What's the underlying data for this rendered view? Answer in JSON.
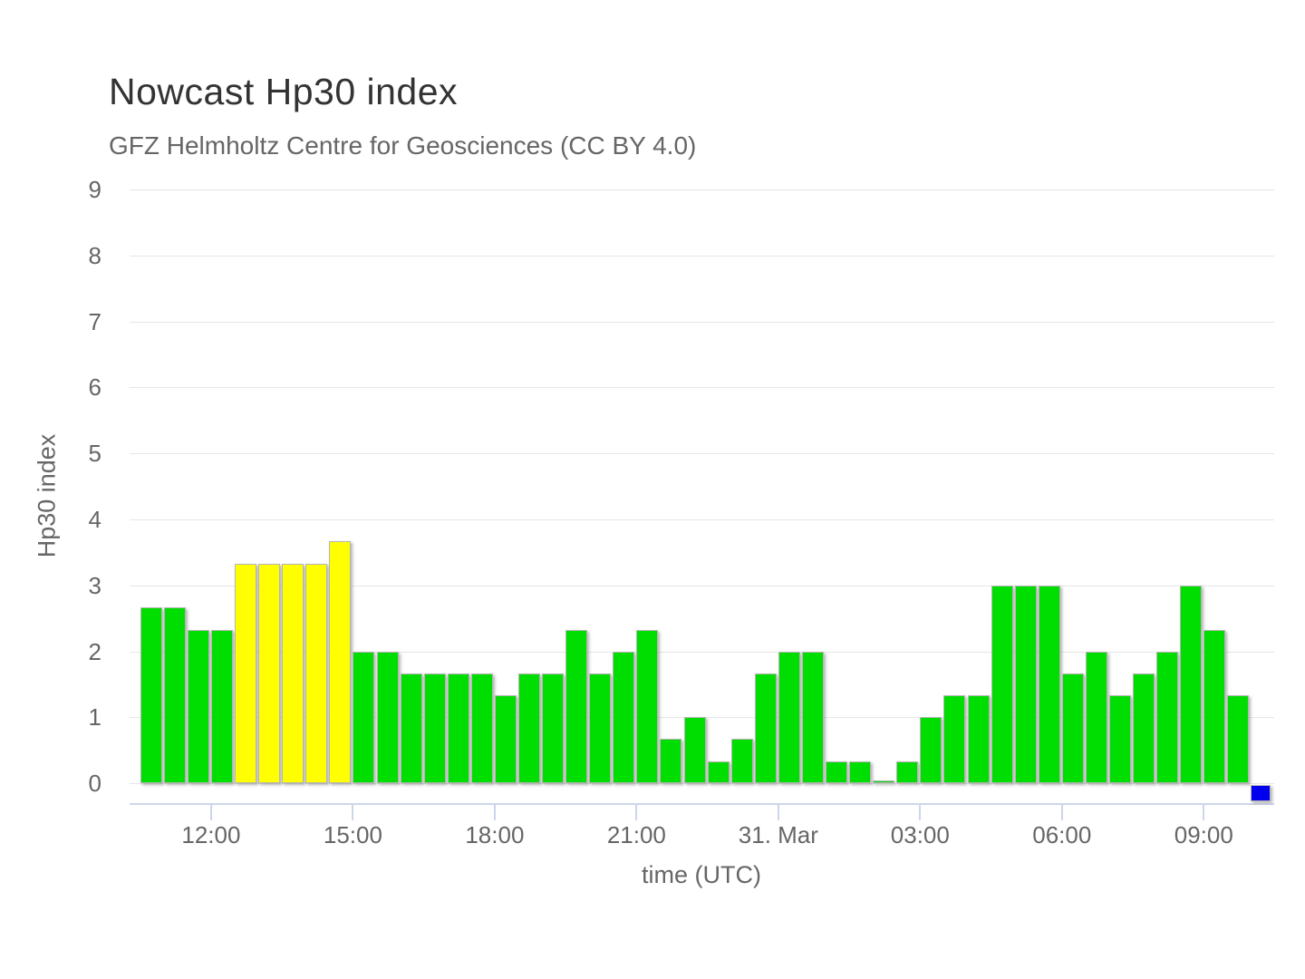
{
  "chart_data": {
    "type": "bar",
    "title": "Nowcast Hp30 index",
    "subtitle": "GFZ Helmholtz Centre for Geosciences (CC BY 4.0)",
    "xlabel": "time (UTC)",
    "ylabel": "Hp30 index",
    "ylim": [
      -0.3,
      9
    ],
    "grid": true,
    "legend": false,
    "y_ticks": [
      0,
      1,
      2,
      3,
      4,
      5,
      6,
      7,
      8,
      9
    ],
    "x_ticks": [
      {
        "label": "12:00",
        "bar_index": 3
      },
      {
        "label": "15:00",
        "bar_index": 9
      },
      {
        "label": "18:00",
        "bar_index": 15
      },
      {
        "label": "21:00",
        "bar_index": 21
      },
      {
        "label": "31. Mar",
        "bar_index": 27
      },
      {
        "label": "03:00",
        "bar_index": 33
      },
      {
        "label": "06:00",
        "bar_index": 39
      },
      {
        "label": "09:00",
        "bar_index": 45
      }
    ],
    "colors": {
      "green": "#00dd00",
      "yellow": "#ffff00",
      "blue": "#0000ee"
    },
    "series": [
      {
        "name": "Hp30",
        "interval_minutes": 30,
        "points": [
          {
            "time": "10:30",
            "value": 2.67,
            "color": "green"
          },
          {
            "time": "11:00",
            "value": 2.67,
            "color": "green"
          },
          {
            "time": "11:30",
            "value": 2.33,
            "color": "green"
          },
          {
            "time": "12:00",
            "value": 2.33,
            "color": "green"
          },
          {
            "time": "12:30",
            "value": 3.33,
            "color": "yellow"
          },
          {
            "time": "13:00",
            "value": 3.33,
            "color": "yellow"
          },
          {
            "time": "13:30",
            "value": 3.33,
            "color": "yellow"
          },
          {
            "time": "14:00",
            "value": 3.33,
            "color": "yellow"
          },
          {
            "time": "14:30",
            "value": 3.67,
            "color": "yellow"
          },
          {
            "time": "15:00",
            "value": 2.0,
            "color": "green"
          },
          {
            "time": "15:30",
            "value": 2.0,
            "color": "green"
          },
          {
            "time": "16:00",
            "value": 1.67,
            "color": "green"
          },
          {
            "time": "16:30",
            "value": 1.67,
            "color": "green"
          },
          {
            "time": "17:00",
            "value": 1.67,
            "color": "green"
          },
          {
            "time": "17:30",
            "value": 1.67,
            "color": "green"
          },
          {
            "time": "18:00",
            "value": 1.33,
            "color": "green"
          },
          {
            "time": "18:30",
            "value": 1.67,
            "color": "green"
          },
          {
            "time": "19:00",
            "value": 1.67,
            "color": "green"
          },
          {
            "time": "19:30",
            "value": 2.33,
            "color": "green"
          },
          {
            "time": "20:00",
            "value": 1.67,
            "color": "green"
          },
          {
            "time": "20:30",
            "value": 2.0,
            "color": "green"
          },
          {
            "time": "21:00",
            "value": 2.33,
            "color": "green"
          },
          {
            "time": "21:30",
            "value": 0.67,
            "color": "green"
          },
          {
            "time": "22:00",
            "value": 1.0,
            "color": "green"
          },
          {
            "time": "22:30",
            "value": 0.33,
            "color": "green"
          },
          {
            "time": "23:00",
            "value": 0.67,
            "color": "green"
          },
          {
            "time": "23:30",
            "value": 1.67,
            "color": "green"
          },
          {
            "time": "00:00",
            "value": 2.0,
            "color": "green"
          },
          {
            "time": "00:30",
            "value": 2.0,
            "color": "green"
          },
          {
            "time": "01:00",
            "value": 0.33,
            "color": "green"
          },
          {
            "time": "01:30",
            "value": 0.33,
            "color": "green"
          },
          {
            "time": "02:00",
            "value": 0.0,
            "color": "green"
          },
          {
            "time": "02:30",
            "value": 0.33,
            "color": "green"
          },
          {
            "time": "03:00",
            "value": 1.0,
            "color": "green"
          },
          {
            "time": "03:30",
            "value": 1.33,
            "color": "green"
          },
          {
            "time": "04:00",
            "value": 1.33,
            "color": "green"
          },
          {
            "time": "04:30",
            "value": 3.0,
            "color": "green"
          },
          {
            "time": "05:00",
            "value": 3.0,
            "color": "green"
          },
          {
            "time": "05:30",
            "value": 3.0,
            "color": "green"
          },
          {
            "time": "06:00",
            "value": 1.67,
            "color": "green"
          },
          {
            "time": "06:30",
            "value": 2.0,
            "color": "green"
          },
          {
            "time": "07:00",
            "value": 1.33,
            "color": "green"
          },
          {
            "time": "07:30",
            "value": 1.67,
            "color": "green"
          },
          {
            "time": "08:00",
            "value": 2.0,
            "color": "green"
          },
          {
            "time": "08:30",
            "value": 3.0,
            "color": "green"
          },
          {
            "time": "09:00",
            "value": 2.33,
            "color": "green"
          },
          {
            "time": "09:30",
            "value": 1.33,
            "color": "green"
          },
          {
            "time": "10:00",
            "value": 0.0,
            "color": "blue",
            "pending": true
          }
        ]
      }
    ]
  }
}
